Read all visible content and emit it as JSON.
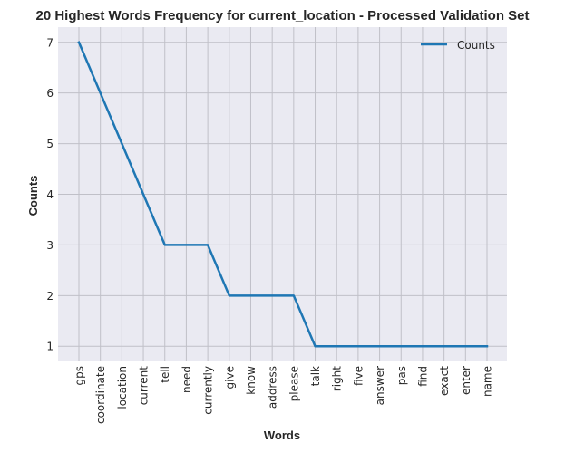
{
  "chart_data": {
    "type": "line",
    "title": "20 Highest Words Frequency for current_location - Processed Validation Set",
    "xlabel": "Words",
    "ylabel": "Counts",
    "categories": [
      "gps",
      "coordinate",
      "location",
      "current",
      "tell",
      "need",
      "currently",
      "give",
      "know",
      "address",
      "please",
      "talk",
      "right",
      "five",
      "answer",
      "pas",
      "find",
      "exact",
      "enter",
      "name"
    ],
    "series": [
      {
        "name": "Counts",
        "values": [
          7,
          6,
          5,
          4,
          3,
          3,
          3,
          2,
          2,
          2,
          2,
          1,
          1,
          1,
          1,
          1,
          1,
          1,
          1,
          1
        ],
        "color": "#1f77b4"
      }
    ],
    "yticks": [
      "1",
      "2",
      "3",
      "4",
      "5",
      "6",
      "7"
    ],
    "ylim": [
      0.7,
      7.3
    ],
    "grid": true,
    "legend_position": "top-right",
    "background_color": "#eaeaf2",
    "grid_color": "#c0c0c8"
  }
}
